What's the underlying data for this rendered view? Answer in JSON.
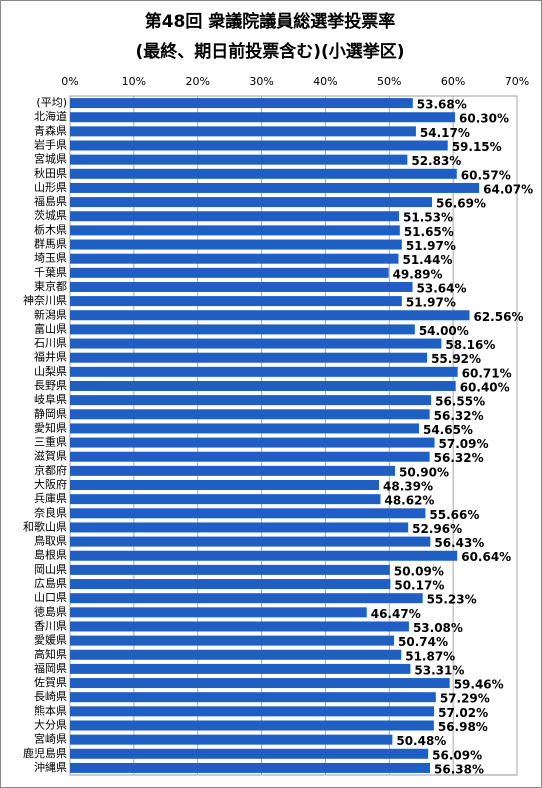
{
  "chart_data": {
    "type": "bar",
    "orientation": "horizontal",
    "title": "第48回 衆議院議員総選挙投票率",
    "subtitle": "(最終、期日前投票含む)(小選挙区)",
    "categories": [
      "(平均)",
      "北海道",
      "青森県",
      "岩手県",
      "宮城県",
      "秋田県",
      "山形県",
      "福島県",
      "茨城県",
      "栃木県",
      "群馬県",
      "埼玉県",
      "千葉県",
      "東京都",
      "神奈川県",
      "新潟県",
      "富山県",
      "石川県",
      "福井県",
      "山梨県",
      "長野県",
      "岐阜県",
      "静岡県",
      "愛知県",
      "三重県",
      "滋賀県",
      "京都府",
      "大阪府",
      "兵庫県",
      "奈良県",
      "和歌山県",
      "鳥取県",
      "島根県",
      "岡山県",
      "広島県",
      "山口県",
      "徳島県",
      "香川県",
      "愛媛県",
      "高知県",
      "福岡県",
      "佐賀県",
      "長崎県",
      "熊本県",
      "大分県",
      "宮崎県",
      "鹿児島県",
      "沖縄県"
    ],
    "values": [
      53.68,
      60.3,
      54.17,
      59.15,
      52.83,
      60.57,
      64.07,
      56.69,
      51.53,
      51.65,
      51.97,
      51.44,
      49.89,
      53.64,
      51.97,
      62.56,
      54.0,
      58.16,
      55.92,
      60.71,
      60.4,
      56.55,
      56.32,
      54.65,
      57.09,
      56.32,
      50.9,
      48.39,
      48.62,
      55.66,
      52.96,
      56.43,
      60.64,
      50.09,
      50.17,
      55.23,
      46.47,
      53.08,
      50.74,
      51.87,
      53.31,
      59.46,
      57.29,
      57.02,
      56.98,
      50.48,
      56.09,
      56.38
    ],
    "value_labels": [
      "53.68%",
      "60.30%",
      "54.17%",
      "59.15%",
      "52.83%",
      "60.57%",
      "64.07%",
      "56.69%",
      "51.53%",
      "51.65%",
      "51.97%",
      "51.44%",
      "49.89%",
      "53.64%",
      "51.97%",
      "62.56%",
      "54.00%",
      "58.16%",
      "55.92%",
      "60.71%",
      "60.40%",
      "56.55%",
      "56.32%",
      "54.65%",
      "57.09%",
      "56.32%",
      "50.90%",
      "48.39%",
      "48.62%",
      "55.66%",
      "52.96%",
      "56.43%",
      "60.64%",
      "50.09%",
      "50.17%",
      "55.23%",
      "46.47%",
      "53.08%",
      "50.74%",
      "51.87%",
      "53.31%",
      "59.46%",
      "57.29%",
      "57.02%",
      "56.98%",
      "50.48%",
      "56.09%",
      "56.38%"
    ],
    "color": "#1f5fc4",
    "xlim": [
      0,
      70
    ],
    "xticks": [
      {
        "value": 0,
        "label": "0%"
      },
      {
        "value": 10,
        "label": "10%"
      },
      {
        "value": 20,
        "label": "20%"
      },
      {
        "value": 30,
        "label": "30%"
      },
      {
        "value": 40,
        "label": "40%"
      },
      {
        "value": 50,
        "label": "50%"
      },
      {
        "value": 60,
        "label": "60%"
      },
      {
        "value": 70,
        "label": "70%"
      }
    ],
    "grid": true
  }
}
